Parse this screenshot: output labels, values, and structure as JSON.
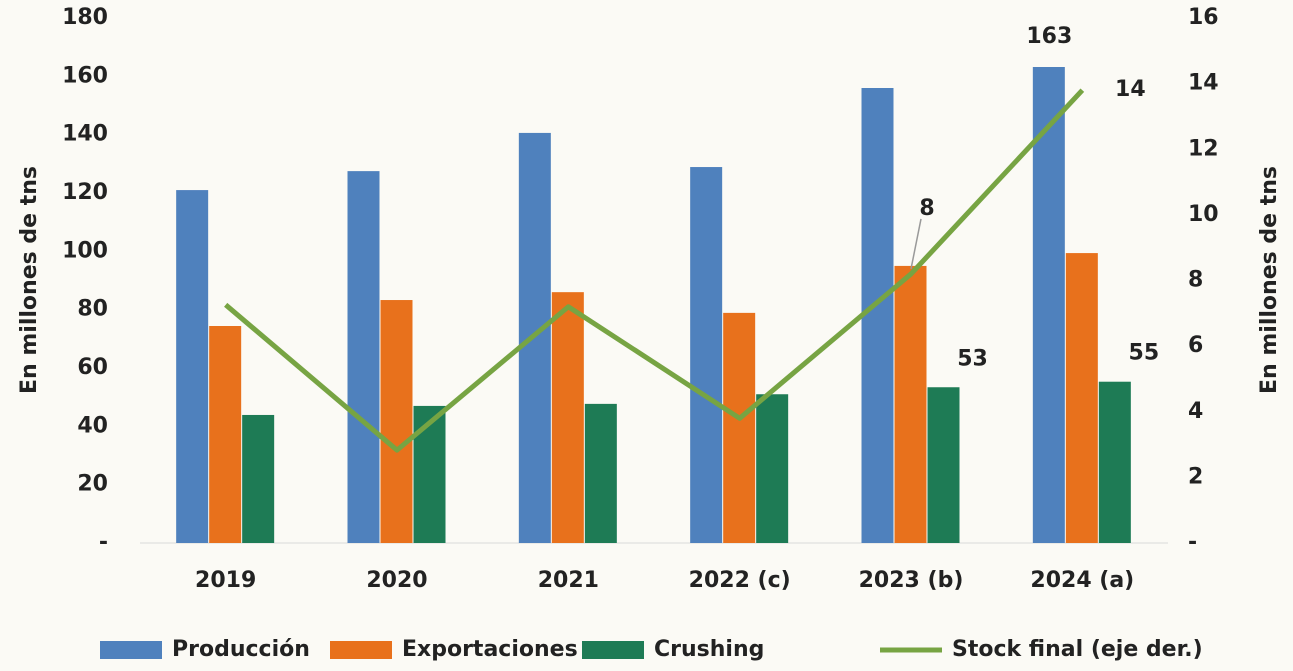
{
  "chart_data": {
    "type": "bar_line",
    "y_label": "En millones de tns",
    "y2_label": "En millones de tns",
    "categories": [
      "2019",
      "2020",
      "2021",
      "2022 (c)",
      "2023 (b)",
      "2024 (a)"
    ],
    "series": [
      {
        "name": "Producción",
        "color": "#4f81bd",
        "kind": "bar",
        "values": [
          121,
          127.5,
          140.6,
          128.9,
          156,
          163.2
        ],
        "value_labels": [
          null,
          null,
          null,
          null,
          null,
          "163"
        ]
      },
      {
        "name": "Exportaciones",
        "color": "#e8711c",
        "kind": "bar",
        "values": [
          74.4,
          83.3,
          86,
          78.9,
          95,
          99.4
        ]
      },
      {
        "name": "Crushing",
        "color": "#1e7b55",
        "kind": "bar",
        "values": [
          43.9,
          47,
          47.7,
          51,
          53.4,
          55.3
        ],
        "value_labels": [
          null,
          null,
          null,
          null,
          "53",
          "55"
        ]
      },
      {
        "name": "Stock final (eje der.)",
        "color": "#77a443",
        "kind": "line",
        "axis": "y2",
        "values": [
          7.26,
          2.83,
          7.2,
          3.8,
          8.2,
          13.8
        ],
        "value_labels": [
          null,
          null,
          null,
          null,
          "8",
          "14"
        ]
      }
    ],
    "ylim": [
      0,
      180
    ],
    "yticks": [
      {
        "value": 0,
        "label": "-"
      },
      20,
      40,
      60,
      80,
      100,
      120,
      140,
      160,
      180
    ],
    "y2lim": [
      0,
      16
    ],
    "y2ticks": [
      {
        "value": 0,
        "label": "-"
      },
      2,
      4,
      6,
      8,
      10,
      12,
      14,
      16
    ],
    "grid": false
  }
}
